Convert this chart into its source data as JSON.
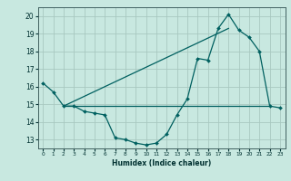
{
  "xlabel": "Humidex (Indice chaleur)",
  "ylabel": "",
  "bg_color": "#c8e8e0",
  "grid_color": "#a8c8c0",
  "line_color": "#006060",
  "xlim": [
    -0.5,
    23.5
  ],
  "ylim": [
    12.5,
    20.5
  ],
  "yticks": [
    13,
    14,
    15,
    16,
    17,
    18,
    19,
    20
  ],
  "xticks": [
    0,
    1,
    2,
    3,
    4,
    5,
    6,
    7,
    8,
    9,
    10,
    11,
    12,
    13,
    14,
    15,
    16,
    17,
    18,
    19,
    20,
    21,
    22,
    23
  ],
  "curve1_x": [
    0,
    1,
    2,
    3,
    4,
    5,
    6,
    7,
    8,
    9,
    10,
    11,
    12,
    13,
    14,
    15,
    16,
    17,
    18,
    19,
    20,
    21,
    22,
    23
  ],
  "curve1_y": [
    16.2,
    15.7,
    14.9,
    14.9,
    14.6,
    14.5,
    14.4,
    13.1,
    13.0,
    12.8,
    12.7,
    12.8,
    13.3,
    14.4,
    15.3,
    17.6,
    17.5,
    19.3,
    20.1,
    19.2,
    18.8,
    18.0,
    14.9,
    14.8
  ],
  "curve2_x": [
    2,
    22
  ],
  "curve2_y": [
    14.9,
    14.9
  ],
  "curve3_x": [
    2,
    18
  ],
  "curve3_y": [
    14.9,
    19.3
  ]
}
